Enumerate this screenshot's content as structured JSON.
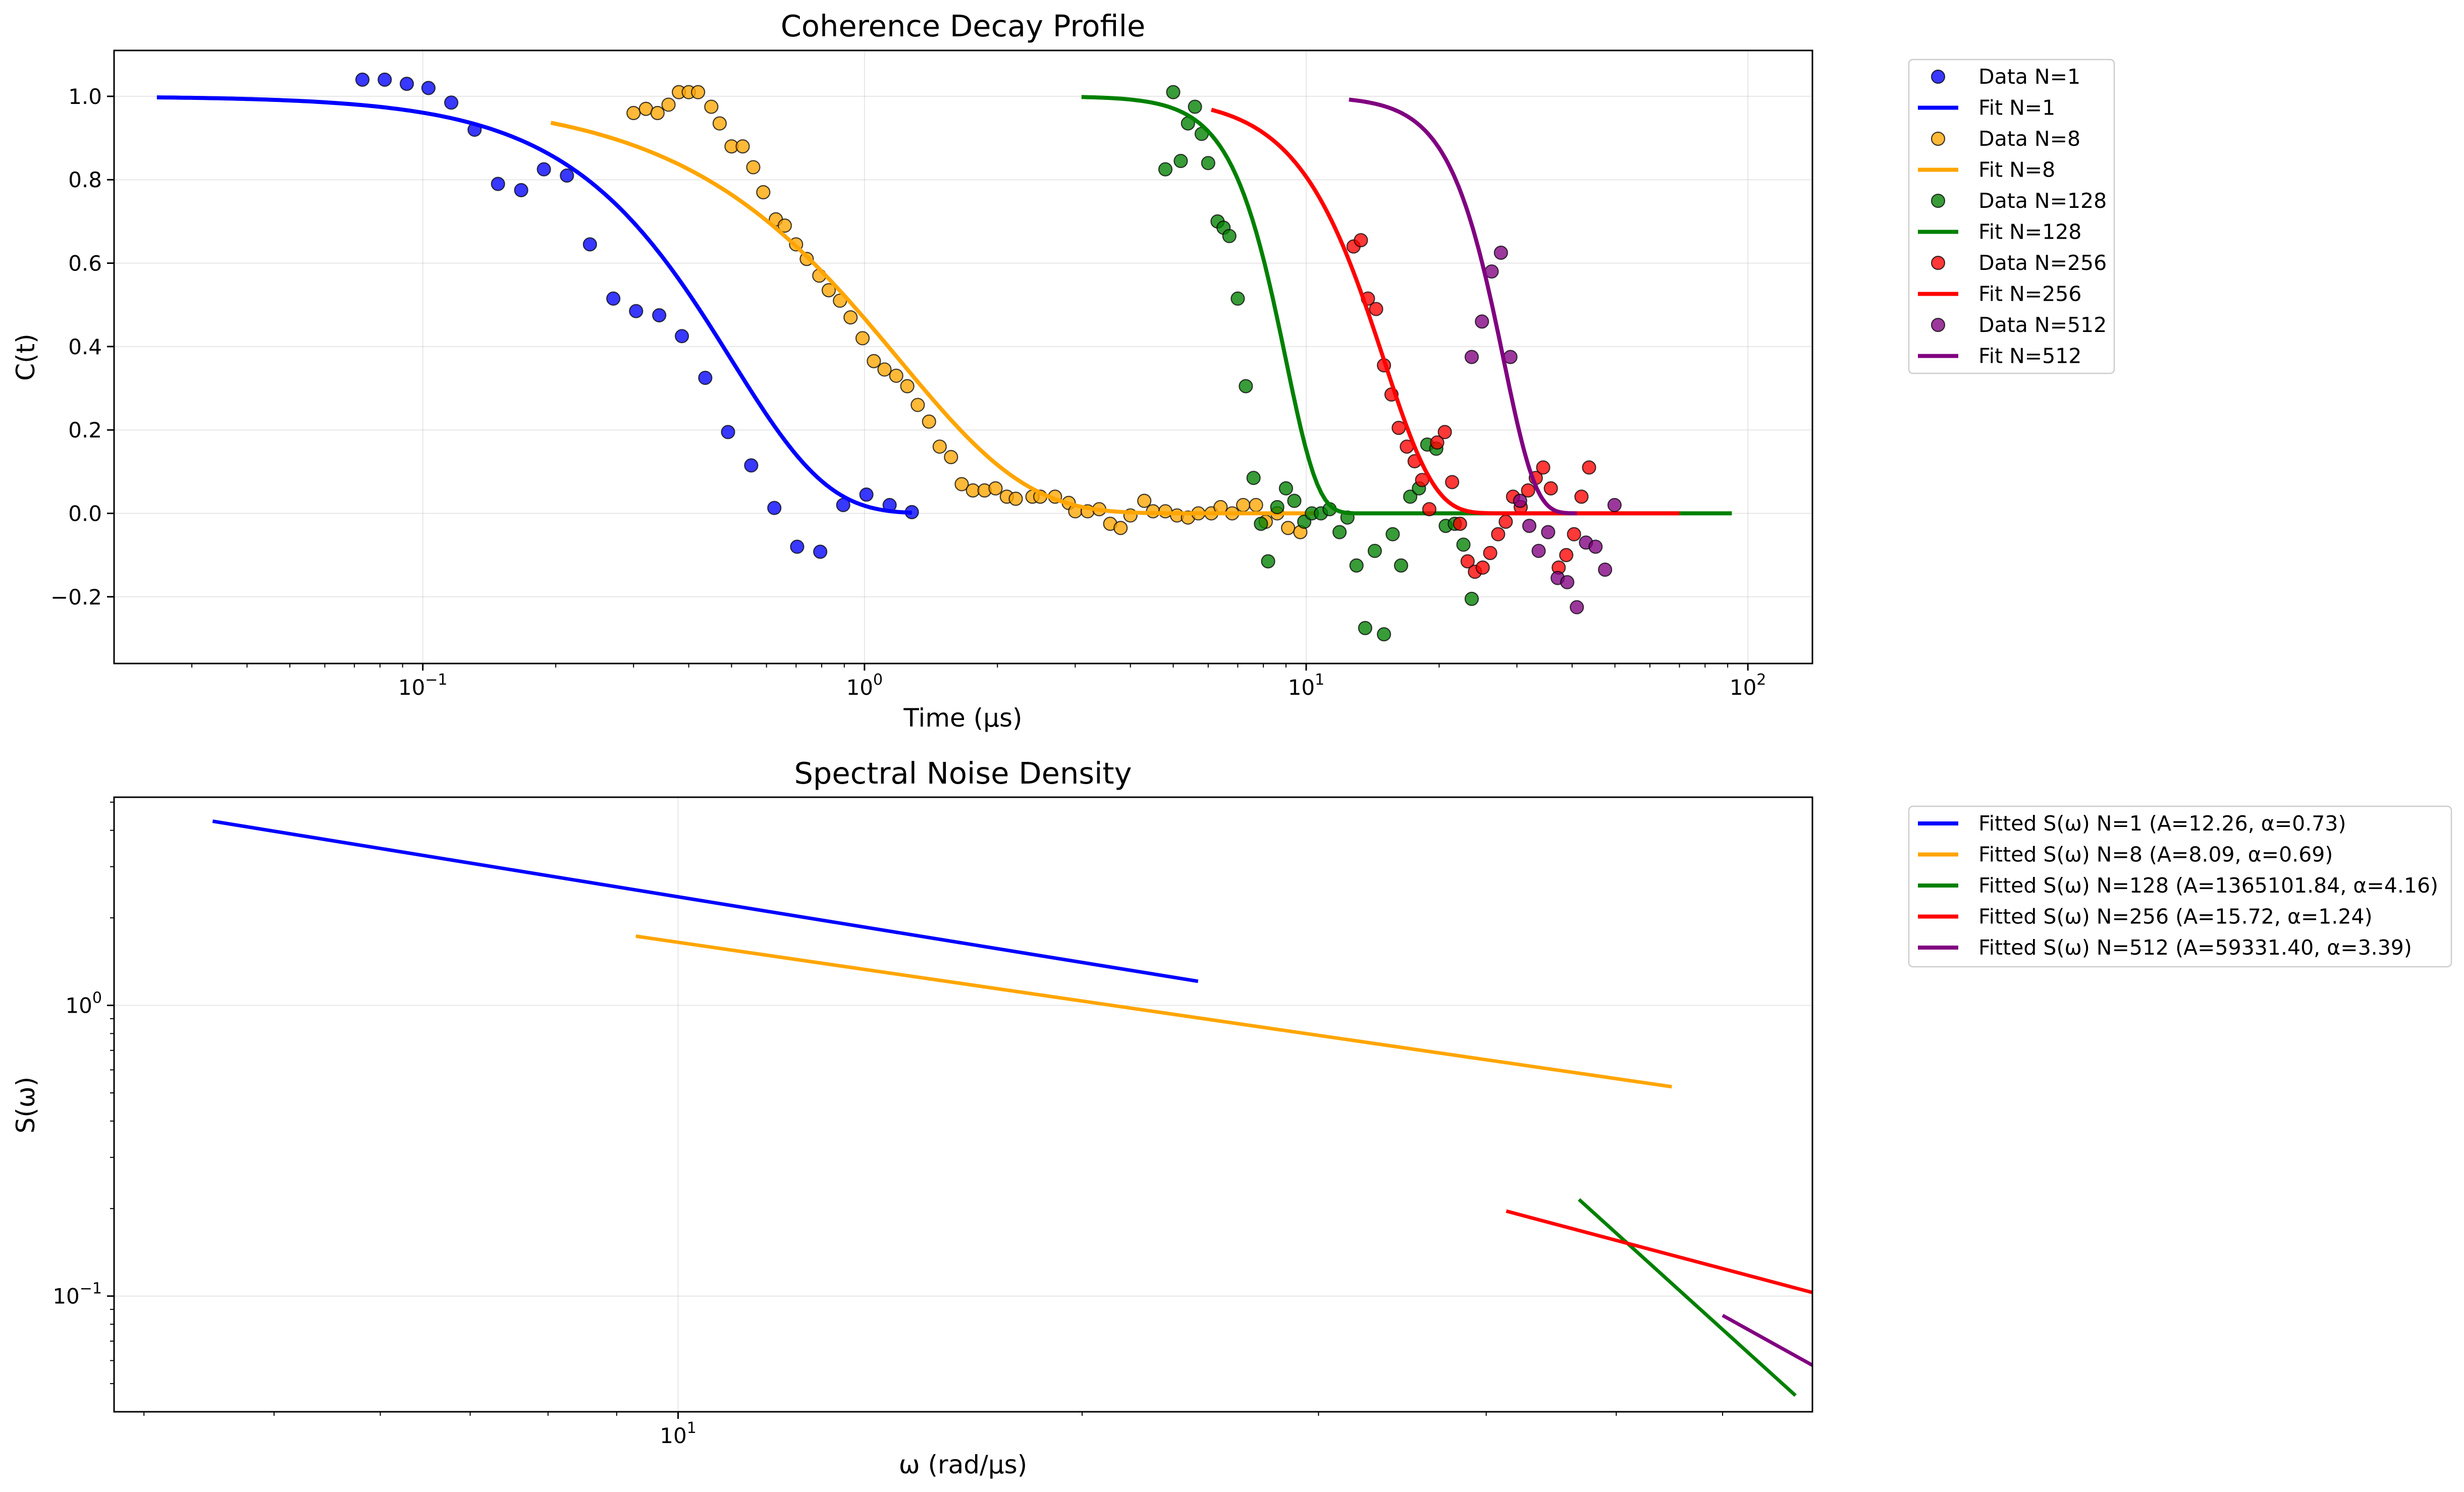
{
  "chart_data": [
    {
      "type": "scatter",
      "title": "Coherence Decay Profile",
      "xlabel": "Time (µs)",
      "ylabel": "C(t)",
      "xscale": "log",
      "xlim": [
        0.02,
        140
      ],
      "ylim": [
        -0.36,
        1.11
      ],
      "x_ticks": [
        {
          "value": 0.1,
          "base": "10",
          "exp": "−1"
        },
        {
          "value": 1,
          "base": "10",
          "exp": "0"
        },
        {
          "value": 10,
          "base": "10",
          "exp": "1"
        },
        {
          "value": 100,
          "base": "10",
          "exp": "2"
        }
      ],
      "y_ticks": [
        {
          "value": -0.2,
          "label": "−0.2"
        },
        {
          "value": 0.0,
          "label": "0.0"
        },
        {
          "value": 0.2,
          "label": "0.2"
        },
        {
          "value": 0.4,
          "label": "0.4"
        },
        {
          "value": 0.6,
          "label": "0.6"
        },
        {
          "value": 0.8,
          "label": "0.8"
        },
        {
          "value": 1.0,
          "label": "1.0"
        }
      ],
      "grid": true,
      "legend_position": "outside-right",
      "series": [
        {
          "name": "Data N=1",
          "kind": "scatter",
          "color": "#0000ff",
          "points": [
            [
              0.073,
              1.04
            ],
            [
              0.082,
              1.04
            ],
            [
              0.092,
              1.03
            ],
            [
              0.103,
              1.02
            ],
            [
              0.116,
              0.985
            ],
            [
              0.131,
              0.92
            ],
            [
              0.148,
              0.79
            ],
            [
              0.167,
              0.775
            ],
            [
              0.188,
              0.825
            ],
            [
              0.212,
              0.81
            ],
            [
              0.239,
              0.645
            ],
            [
              0.27,
              0.515
            ],
            [
              0.304,
              0.485
            ],
            [
              0.343,
              0.475
            ],
            [
              0.386,
              0.425
            ],
            [
              0.436,
              0.325
            ],
            [
              0.491,
              0.195
            ],
            [
              0.554,
              0.115
            ],
            [
              0.625,
              0.013
            ],
            [
              0.704,
              -0.08
            ],
            [
              0.794,
              -0.092
            ],
            [
              0.895,
              0.02
            ],
            [
              1.01,
              0.045
            ],
            [
              1.14,
              0.02
            ],
            [
              1.28,
              0.003
            ]
          ]
        },
        {
          "name": "Fit N=1",
          "kind": "line",
          "color": "#0000ff",
          "model": {
            "a": 1,
            "tau": 0.5,
            "beta": 2,
            "xmin": 0.025,
            "xmax": 1.28
          }
        },
        {
          "name": "Data N=8",
          "kind": "scatter",
          "color": "#ffa500",
          "points": [
            [
              0.3,
              0.96
            ],
            [
              0.32,
              0.97
            ],
            [
              0.34,
              0.96
            ],
            [
              0.36,
              0.98
            ],
            [
              0.38,
              1.01
            ],
            [
              0.4,
              1.01
            ],
            [
              0.42,
              1.01
            ],
            [
              0.45,
              0.975
            ],
            [
              0.47,
              0.935
            ],
            [
              0.5,
              0.88
            ],
            [
              0.53,
              0.88
            ],
            [
              0.56,
              0.83
            ],
            [
              0.59,
              0.77
            ],
            [
              0.63,
              0.705
            ],
            [
              0.66,
              0.69
            ],
            [
              0.7,
              0.645
            ],
            [
              0.74,
              0.61
            ],
            [
              0.79,
              0.57
            ],
            [
              0.83,
              0.535
            ],
            [
              0.88,
              0.51
            ],
            [
              0.93,
              0.47
            ],
            [
              0.99,
              0.42
            ],
            [
              1.05,
              0.365
            ],
            [
              1.11,
              0.345
            ],
            [
              1.18,
              0.33
            ],
            [
              1.25,
              0.305
            ],
            [
              1.32,
              0.26
            ],
            [
              1.4,
              0.22
            ],
            [
              1.48,
              0.16
            ],
            [
              1.57,
              0.135
            ],
            [
              1.66,
              0.07
            ],
            [
              1.76,
              0.055
            ],
            [
              1.87,
              0.055
            ],
            [
              1.98,
              0.06
            ],
            [
              2.1,
              0.04
            ],
            [
              2.2,
              0.035
            ],
            [
              2.4,
              0.04
            ],
            [
              2.5,
              0.04
            ],
            [
              2.7,
              0.04
            ],
            [
              2.9,
              0.025
            ],
            [
              3.0,
              0.005
            ],
            [
              3.2,
              0.005
            ],
            [
              3.4,
              0.01
            ],
            [
              3.6,
              -0.025
            ],
            [
              3.8,
              -0.035
            ],
            [
              4.0,
              -0.005
            ],
            [
              4.3,
              0.03
            ],
            [
              4.5,
              0.005
            ],
            [
              4.8,
              0.005
            ],
            [
              5.1,
              -0.005
            ],
            [
              5.4,
              -0.01
            ],
            [
              5.7,
              0.0
            ],
            [
              6.1,
              0.0
            ],
            [
              6.4,
              0.015
            ],
            [
              6.8,
              0.0
            ],
            [
              7.2,
              0.02
            ],
            [
              7.7,
              0.02
            ],
            [
              8.1,
              -0.02
            ],
            [
              8.6,
              0.0
            ],
            [
              9.1,
              -0.035
            ],
            [
              9.7,
              -0.045
            ]
          ]
        },
        {
          "name": "Fit N=8",
          "kind": "line",
          "color": "#ffa500",
          "model": {
            "a": 1,
            "tau": 1.2,
            "beta": 1.5,
            "xmin": 0.195,
            "xmax": 10.5
          }
        },
        {
          "name": "Data N=128",
          "kind": "scatter",
          "color": "#008000",
          "points": [
            [
              4.8,
              0.825
            ],
            [
              5.0,
              1.01
            ],
            [
              5.2,
              0.845
            ],
            [
              5.4,
              0.935
            ],
            [
              5.6,
              0.975
            ],
            [
              5.8,
              0.91
            ],
            [
              6.0,
              0.84
            ],
            [
              6.3,
              0.7
            ],
            [
              6.5,
              0.685
            ],
            [
              6.7,
              0.665
            ],
            [
              7.0,
              0.515
            ],
            [
              7.3,
              0.305
            ],
            [
              7.6,
              0.085
            ],
            [
              7.9,
              -0.025
            ],
            [
              8.2,
              -0.115
            ],
            [
              8.6,
              0.015
            ],
            [
              9.0,
              0.06
            ],
            [
              9.4,
              0.03
            ],
            [
              9.9,
              -0.02
            ],
            [
              10.3,
              0.0
            ],
            [
              10.8,
              0.0
            ],
            [
              11.3,
              0.01
            ],
            [
              11.9,
              -0.045
            ],
            [
              12.4,
              -0.01
            ],
            [
              13.0,
              -0.125
            ],
            [
              13.6,
              -0.275
            ],
            [
              14.3,
              -0.09
            ],
            [
              15.0,
              -0.29
            ],
            [
              15.7,
              -0.05
            ],
            [
              16.4,
              -0.125
            ],
            [
              17.2,
              0.04
            ],
            [
              18.0,
              0.06
            ],
            [
              18.8,
              0.165
            ],
            [
              19.7,
              0.155
            ],
            [
              20.7,
              -0.03
            ],
            [
              21.7,
              -0.025
            ],
            [
              22.7,
              -0.075
            ],
            [
              23.7,
              -0.205
            ]
          ]
        },
        {
          "name": "Fit N=128",
          "kind": "line",
          "color": "#008000",
          "model": {
            "a": 1,
            "tau": 9,
            "beta": 6,
            "xmin": 3.1,
            "xmax": 92
          }
        },
        {
          "name": "Data N=256",
          "kind": "scatter",
          "color": "#ff0000",
          "points": [
            [
              12.8,
              0.64
            ],
            [
              13.3,
              0.655
            ],
            [
              13.8,
              0.515
            ],
            [
              14.4,
              0.49
            ],
            [
              15.0,
              0.355
            ],
            [
              15.6,
              0.285
            ],
            [
              16.2,
              0.205
            ],
            [
              16.9,
              0.16
            ],
            [
              17.6,
              0.125
            ],
            [
              18.3,
              0.08
            ],
            [
              19.0,
              0.01
            ],
            [
              19.8,
              0.17
            ],
            [
              20.6,
              0.195
            ],
            [
              21.4,
              0.075
            ],
            [
              22.3,
              -0.025
            ],
            [
              23.2,
              -0.115
            ],
            [
              24.1,
              -0.14
            ],
            [
              25.1,
              -0.13
            ],
            [
              26.1,
              -0.095
            ],
            [
              27.2,
              -0.05
            ],
            [
              28.3,
              -0.02
            ],
            [
              29.4,
              0.04
            ],
            [
              30.6,
              0.015
            ],
            [
              31.8,
              0.055
            ],
            [
              33.1,
              0.085
            ],
            [
              34.4,
              0.11
            ],
            [
              35.8,
              0.06
            ],
            [
              37.3,
              -0.13
            ],
            [
              38.8,
              -0.1
            ],
            [
              40.4,
              -0.05
            ],
            [
              42.0,
              0.04
            ],
            [
              43.7,
              0.11
            ]
          ]
        },
        {
          "name": "Fit N=256",
          "kind": "line",
          "color": "#ff0000",
          "model": {
            "a": 1,
            "tau": 15,
            "beta": 3.8,
            "xmin": 6.1,
            "xmax": 70
          }
        },
        {
          "name": "Data N=512",
          "kind": "scatter",
          "color": "#800080",
          "points": [
            [
              23.7,
              0.375
            ],
            [
              25.0,
              0.46
            ],
            [
              26.3,
              0.58
            ],
            [
              27.6,
              0.625
            ],
            [
              29.0,
              0.375
            ],
            [
              30.5,
              0.03
            ],
            [
              32.0,
              -0.03
            ],
            [
              33.6,
              -0.09
            ],
            [
              35.3,
              -0.045
            ],
            [
              37.1,
              -0.155
            ],
            [
              39.0,
              -0.165
            ],
            [
              41.0,
              -0.225
            ],
            [
              43.0,
              -0.07
            ],
            [
              45.2,
              -0.08
            ],
            [
              47.5,
              -0.135
            ],
            [
              49.9,
              0.02
            ]
          ]
        },
        {
          "name": "Fit N=512",
          "kind": "line",
          "color": "#800080",
          "model": {
            "a": 1,
            "tau": 28,
            "beta": 6,
            "xmin": 12.5,
            "xmax": 41
          }
        }
      ]
    },
    {
      "type": "line",
      "title": "Spectral Noise Density",
      "xlabel": "ω (rad/µs)",
      "ylabel": "S(ω)",
      "xscale": "log",
      "yscale": "log",
      "xlim": [
        3.8,
        70
      ],
      "ylim": [
        0.04,
        5.2
      ],
      "x_ticks": [
        {
          "value": 10,
          "base": "10",
          "exp": "1"
        }
      ],
      "y_ticks": [
        {
          "value": 0.1,
          "base": "10",
          "exp": "−1"
        },
        {
          "value": 1,
          "base": "10",
          "exp": "0"
        }
      ],
      "grid": true,
      "legend_position": "outside-right",
      "series": [
        {
          "name": "Fitted S(ω) N=1 (A=12.26, α=0.73)",
          "color": "#0000ff",
          "x": [
            4.5,
            24.4
          ],
          "y": [
            4.3,
            1.21
          ]
        },
        {
          "name": "Fitted S(ω) N=8 (A=8.09, α=0.69)",
          "color": "#ffa500",
          "x": [
            9.3,
            55
          ],
          "y": [
            1.73,
            0.525
          ]
        },
        {
          "name": "Fitted S(ω) N=128 (A=1365101.84, α=4.16)",
          "color": "#008000",
          "x": [
            46.9,
            68
          ],
          "y": [
            0.215,
            0.0455
          ]
        },
        {
          "name": "Fitted S(ω) N=256 (A=15.72, α=1.24)",
          "color": "#ff0000",
          "x": [
            41.4,
            77
          ],
          "y": [
            0.196,
            0.0915
          ]
        },
        {
          "name": "Fitted S(ω) N=512 (A=59331.40, α=3.39)",
          "color": "#800080",
          "x": [
            60,
            81
          ],
          "y": [
            0.0858,
            0.0398
          ]
        }
      ]
    }
  ]
}
